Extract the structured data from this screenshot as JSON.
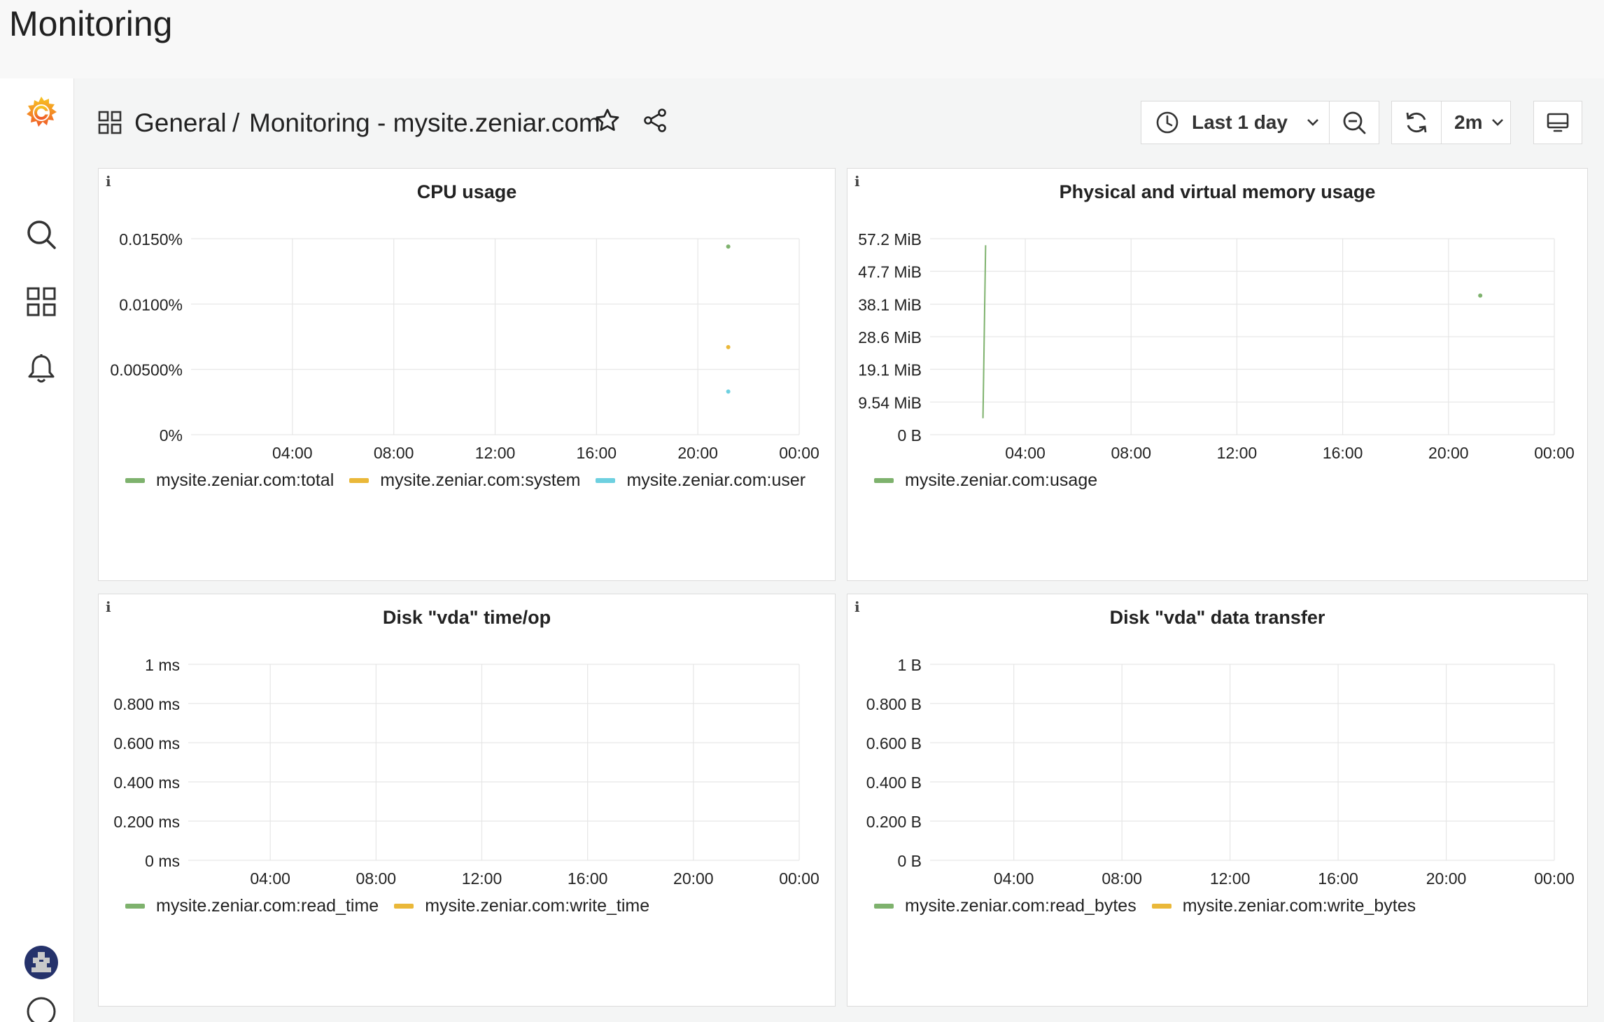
{
  "app": {
    "title": "Monitoring"
  },
  "sidebar": {
    "items": [
      {
        "name": "grafana-logo-icon"
      },
      {
        "name": "search-icon"
      },
      {
        "name": "dashboards-icon"
      },
      {
        "name": "alerting-bell-icon"
      },
      {
        "name": "user-avatar"
      }
    ]
  },
  "header": {
    "breadcrumb_folder": "General",
    "breadcrumb_separator": "/",
    "breadcrumb_dashboard": "Monitoring - mysite.zeniar.com",
    "time_range_label": "Last 1 day",
    "refresh_interval_label": "2m",
    "icons": [
      "dashboard-grid-icon",
      "star-icon",
      "share-icon",
      "clock-icon",
      "chevron-down-icon",
      "zoom-out-icon",
      "refresh-icon",
      "tv-mode-icon"
    ]
  },
  "colors": {
    "green": "#7eb26d",
    "yellow": "#eab839",
    "blue": "#6ed0e0",
    "grid": "#e6e6e6"
  },
  "chart_data": [
    {
      "type": "line",
      "info_icon": "i",
      "title": "CPU usage",
      "x": [
        "04:00",
        "08:00",
        "12:00",
        "16:00",
        "20:00",
        "00:00"
      ],
      "y_ticks": [
        "0%",
        "0.00500%",
        "0.0100%",
        "0.0150%"
      ],
      "y_tick_values": [
        0,
        0.005,
        0.01,
        0.015
      ],
      "ylim": [
        0,
        0.015
      ],
      "xlim_hours": [
        0,
        24
      ],
      "x_tick_hours": [
        4,
        8,
        12,
        16,
        20,
        24
      ],
      "grid": true,
      "legend_position": "bottom",
      "series": [
        {
          "name": "mysite.zeniar.com:total",
          "color": "#7eb26d",
          "points": [
            [
              21.2,
              0.0144
            ]
          ]
        },
        {
          "name": "mysite.zeniar.com:system",
          "color": "#eab839",
          "points": [
            [
              21.2,
              0.0067
            ]
          ]
        },
        {
          "name": "mysite.zeniar.com:user",
          "color": "#6ed0e0",
          "points": [
            [
              21.2,
              0.0033
            ]
          ]
        }
      ]
    },
    {
      "type": "line",
      "info_icon": "i",
      "title": "Physical and virtual memory usage",
      "x": [
        "04:00",
        "08:00",
        "12:00",
        "16:00",
        "20:00",
        "00:00"
      ],
      "y_ticks": [
        "0 B",
        "9.54 MiB",
        "19.1 MiB",
        "28.6 MiB",
        "38.1 MiB",
        "47.7 MiB",
        "57.2 MiB"
      ],
      "y_tick_values": [
        0,
        9.54,
        19.1,
        28.6,
        38.1,
        47.7,
        57.2
      ],
      "ylim": [
        0,
        57.2
      ],
      "xlim_hours": [
        0.4,
        24
      ],
      "x_tick_hours": [
        4,
        8,
        12,
        16,
        20,
        24
      ],
      "grid": true,
      "legend_position": "bottom",
      "series": [
        {
          "name": "mysite.zeniar.com:usage",
          "color": "#7eb26d",
          "segments": [
            [
              [
                2.4,
                4.8
              ],
              [
                2.5,
                55.3
              ]
            ]
          ],
          "points": [
            [
              21.2,
              40.6
            ]
          ]
        }
      ]
    },
    {
      "type": "line",
      "info_icon": "i",
      "title": "Disk \"vda\" time/op",
      "x": [
        "04:00",
        "08:00",
        "12:00",
        "16:00",
        "20:00",
        "00:00"
      ],
      "y_ticks": [
        "0 ms",
        "0.200 ms",
        "0.400 ms",
        "0.600 ms",
        "0.800 ms",
        "1 ms"
      ],
      "y_tick_values": [
        0,
        0.2,
        0.4,
        0.6,
        0.8,
        1
      ],
      "ylim": [
        0,
        1
      ],
      "xlim_hours": [
        0.9,
        24
      ],
      "x_tick_hours": [
        4,
        8,
        12,
        16,
        20,
        24
      ],
      "grid": true,
      "legend_position": "bottom",
      "series": [
        {
          "name": "mysite.zeniar.com:read_time",
          "color": "#7eb26d",
          "points": []
        },
        {
          "name": "mysite.zeniar.com:write_time",
          "color": "#eab839",
          "points": []
        }
      ]
    },
    {
      "type": "line",
      "info_icon": "i",
      "title": "Disk \"vda\" data transfer",
      "x": [
        "04:00",
        "08:00",
        "12:00",
        "16:00",
        "20:00",
        "00:00"
      ],
      "y_ticks": [
        "0 B",
        "0.200 B",
        "0.400 B",
        "0.600 B",
        "0.800 B",
        "1 B"
      ],
      "y_tick_values": [
        0,
        0.2,
        0.4,
        0.6,
        0.8,
        1
      ],
      "ylim": [
        0,
        1
      ],
      "xlim_hours": [
        0.9,
        24
      ],
      "x_tick_hours": [
        4,
        8,
        12,
        16,
        20,
        24
      ],
      "grid": true,
      "legend_position": "bottom",
      "series": [
        {
          "name": "mysite.zeniar.com:read_bytes",
          "color": "#7eb26d",
          "points": []
        },
        {
          "name": "mysite.zeniar.com:write_bytes",
          "color": "#eab839",
          "points": []
        }
      ]
    }
  ]
}
